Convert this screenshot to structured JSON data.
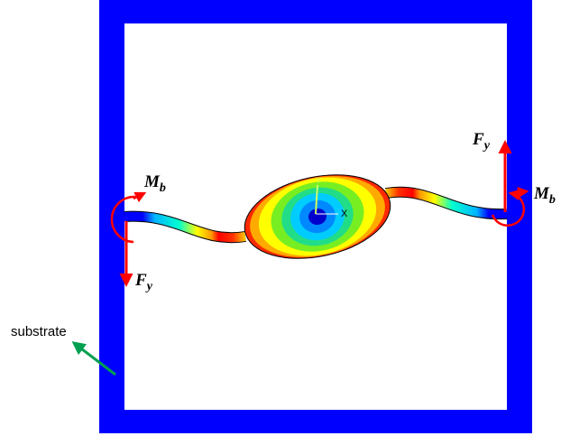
{
  "labels": {
    "moment_left": {
      "symbol": "M",
      "subscript": "b"
    },
    "force_left": {
      "symbol": "F",
      "subscript": "y"
    },
    "force_right": {
      "symbol": "F",
      "subscript": "y"
    },
    "moment_right": {
      "symbol": "M",
      "subscript": "b"
    },
    "substrate": "substrate",
    "axis_x": "X",
    "axis_y": "Y"
  }
}
